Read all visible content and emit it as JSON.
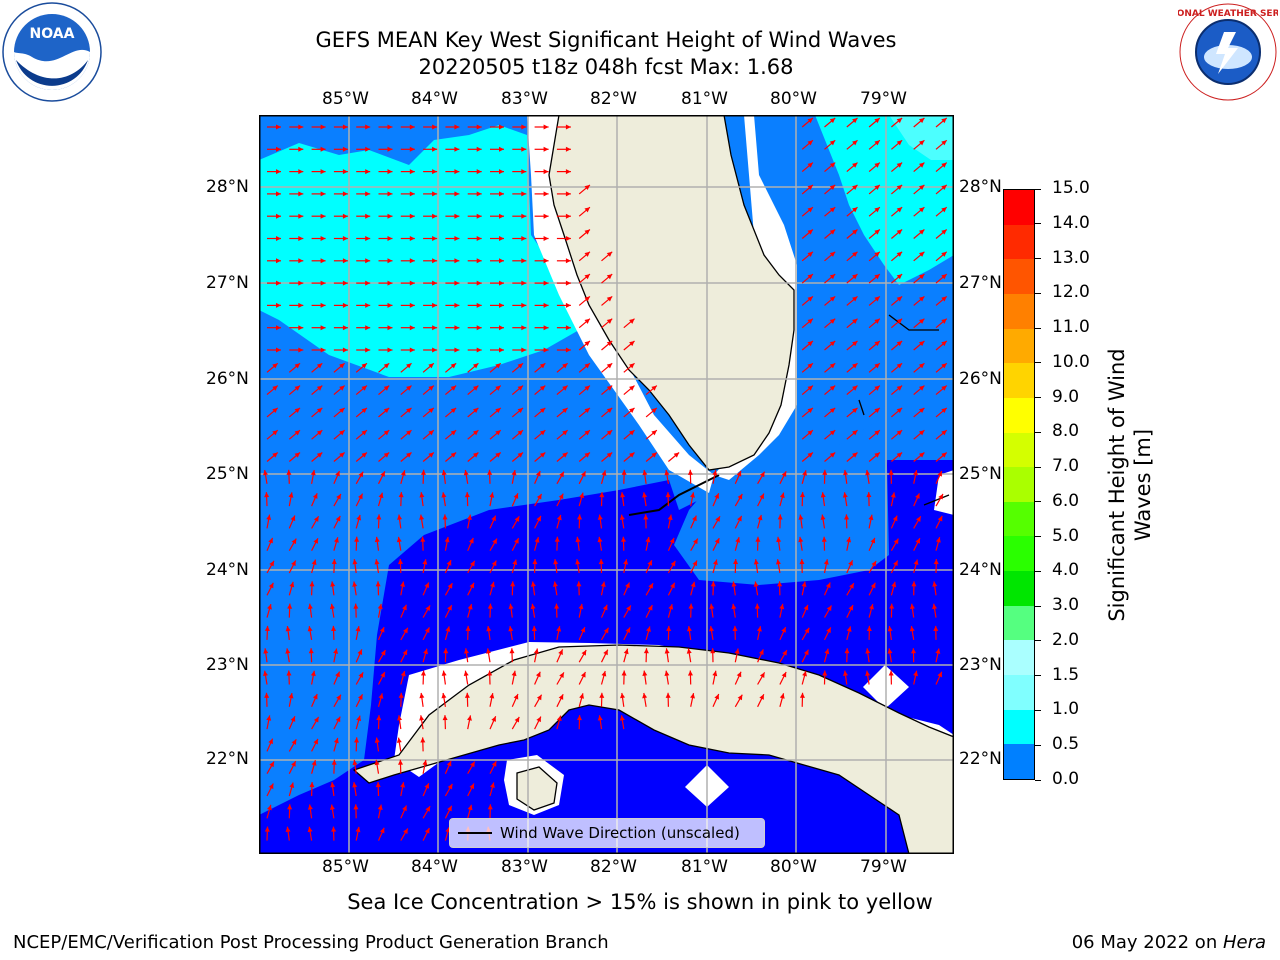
{
  "title": {
    "line1": "GEFS MEAN Key West Significant Height of Wind Waves",
    "line2": "20220505 t18z 048h fcst   Max: 1.68"
  },
  "logos": {
    "left": "NOAA",
    "right": "NATIONAL WEATHER SERVICE"
  },
  "map": {
    "lon_labels": [
      "85°W",
      "84°W",
      "83°W",
      "82°W",
      "81°W",
      "80°W",
      "79°W"
    ],
    "lat_labels": [
      "28°N",
      "27°N",
      "26°N",
      "25°N",
      "24°N",
      "23°N",
      "22°N"
    ],
    "legend_label": "Wind Wave Direction (unscaled)",
    "colors": {
      "land": "#eeeddb",
      "band_0_0_5": "#0000ff",
      "band_0_5_1_0": "#0a7fff",
      "band_1_0_1_5": "#00ffff",
      "band_1_5_2_0": "#4cffff",
      "arrow": "#ff0000",
      "grid": "#b0b0b0"
    }
  },
  "colorbar": {
    "label": "Significant Height of Wind Waves [m]",
    "ticks": [
      "15.0",
      "14.0",
      "13.0",
      "12.0",
      "11.0",
      "10.0",
      "9.0",
      "8.0",
      "7.0",
      "6.0",
      "5.0",
      "4.0",
      "3.0",
      "2.0",
      "1.5",
      "1.0",
      "0.5",
      "0.0"
    ],
    "colors": [
      "#ff0000",
      "#ff2a00",
      "#ff5500",
      "#ff8000",
      "#ffaa00",
      "#ffd400",
      "#ffff00",
      "#d4ff00",
      "#aaff00",
      "#55ff00",
      "#2aff00",
      "#00e600",
      "#55ff80",
      "#aaffff",
      "#80ffff",
      "#00ffff",
      "#0080ff",
      "#0000ff"
    ]
  },
  "footer": {
    "caption": "Sea Ice Concentration > 15% is shown in pink to yellow",
    "left": "NCEP/EMC/Verification Post Processing Product Generation Branch",
    "date": "06 May 2022 on ",
    "machine": "Hera"
  }
}
